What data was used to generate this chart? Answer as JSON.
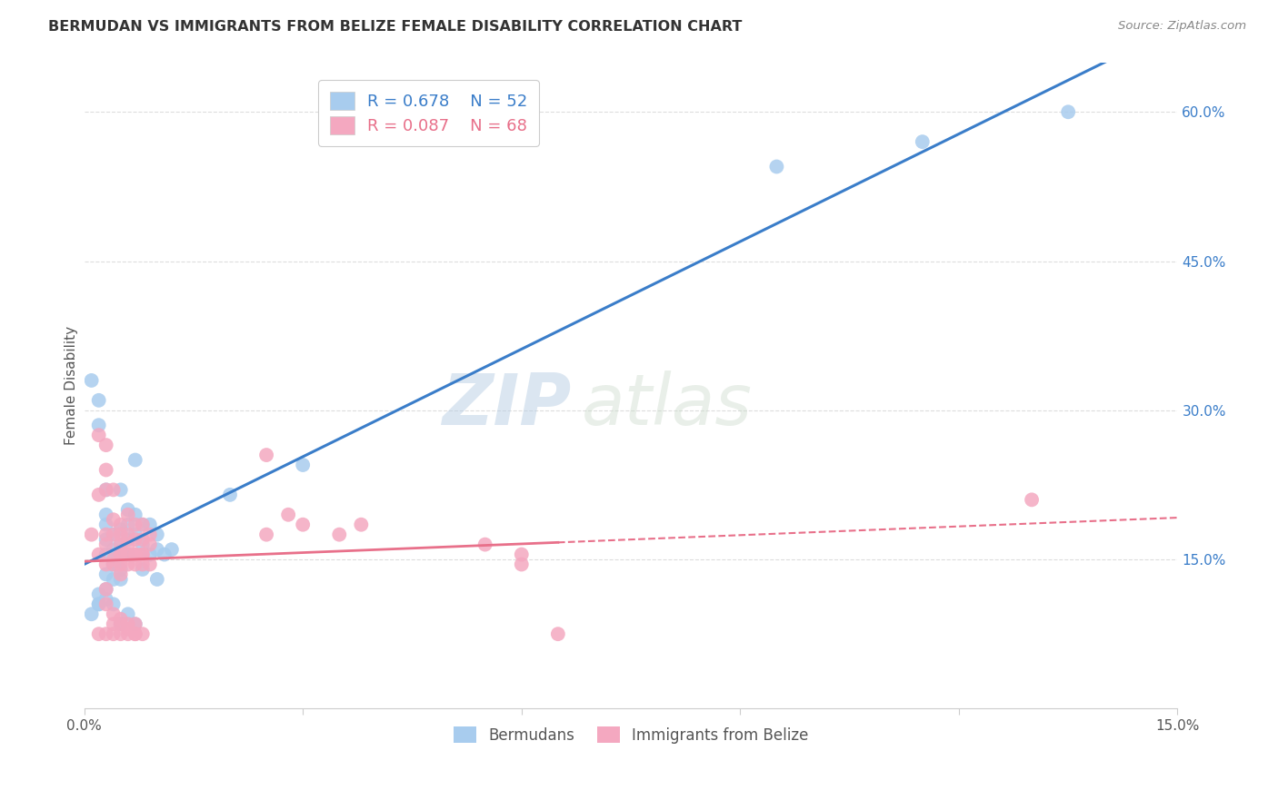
{
  "title": "BERMUDAN VS IMMIGRANTS FROM BELIZE FEMALE DISABILITY CORRELATION CHART",
  "source": "Source: ZipAtlas.com",
  "ylabel": "Female Disability",
  "xlim": [
    0.0,
    0.15
  ],
  "ylim": [
    0.0,
    0.65
  ],
  "blue_R": 0.678,
  "blue_N": 52,
  "pink_R": 0.087,
  "pink_N": 68,
  "blue_color": "#A8CCEE",
  "pink_color": "#F4A8C0",
  "blue_line_color": "#3A7DC9",
  "pink_line_color": "#E8708A",
  "watermark_zip": "ZIP",
  "watermark_atlas": "atlas",
  "background_color": "#FFFFFF",
  "grid_color": "#DDDDDD",
  "blue_x": [
    0.001,
    0.002,
    0.002,
    0.003,
    0.003,
    0.003,
    0.003,
    0.003,
    0.004,
    0.004,
    0.004,
    0.004,
    0.005,
    0.005,
    0.005,
    0.005,
    0.005,
    0.005,
    0.006,
    0.006,
    0.006,
    0.006,
    0.007,
    0.007,
    0.007,
    0.008,
    0.008,
    0.008,
    0.009,
    0.009,
    0.01,
    0.01,
    0.01,
    0.011,
    0.012,
    0.002,
    0.003,
    0.004,
    0.005,
    0.006,
    0.007,
    0.003,
    0.002,
    0.004,
    0.02,
    0.03,
    0.001,
    0.002,
    0.003,
    0.115,
    0.135,
    0.095
  ],
  "blue_y": [
    0.33,
    0.285,
    0.31,
    0.22,
    0.195,
    0.185,
    0.17,
    0.155,
    0.175,
    0.16,
    0.145,
    0.13,
    0.22,
    0.18,
    0.165,
    0.155,
    0.14,
    0.13,
    0.2,
    0.185,
    0.17,
    0.155,
    0.25,
    0.195,
    0.175,
    0.185,
    0.165,
    0.14,
    0.185,
    0.155,
    0.175,
    0.16,
    0.13,
    0.155,
    0.16,
    0.105,
    0.12,
    0.105,
    0.085,
    0.095,
    0.085,
    0.135,
    0.115,
    0.145,
    0.215,
    0.245,
    0.095,
    0.105,
    0.11,
    0.57,
    0.6,
    0.545
  ],
  "pink_x": [
    0.001,
    0.002,
    0.002,
    0.003,
    0.003,
    0.003,
    0.003,
    0.004,
    0.004,
    0.004,
    0.005,
    0.005,
    0.005,
    0.005,
    0.006,
    0.006,
    0.006,
    0.007,
    0.007,
    0.007,
    0.008,
    0.008,
    0.008,
    0.009,
    0.009,
    0.002,
    0.003,
    0.003,
    0.004,
    0.004,
    0.005,
    0.005,
    0.005,
    0.006,
    0.006,
    0.007,
    0.007,
    0.008,
    0.008,
    0.009,
    0.025,
    0.025,
    0.028,
    0.03,
    0.035,
    0.038,
    0.055,
    0.06,
    0.065,
    0.06,
    0.003,
    0.003,
    0.004,
    0.004,
    0.005,
    0.005,
    0.006,
    0.006,
    0.007,
    0.007,
    0.002,
    0.003,
    0.004,
    0.005,
    0.006,
    0.007,
    0.008,
    0.13
  ],
  "pink_y": [
    0.175,
    0.275,
    0.215,
    0.265,
    0.24,
    0.22,
    0.175,
    0.22,
    0.19,
    0.175,
    0.185,
    0.175,
    0.165,
    0.155,
    0.195,
    0.175,
    0.155,
    0.185,
    0.17,
    0.155,
    0.185,
    0.17,
    0.155,
    0.175,
    0.165,
    0.155,
    0.165,
    0.145,
    0.15,
    0.145,
    0.155,
    0.145,
    0.135,
    0.165,
    0.145,
    0.155,
    0.145,
    0.155,
    0.145,
    0.145,
    0.255,
    0.175,
    0.195,
    0.185,
    0.175,
    0.185,
    0.165,
    0.145,
    0.075,
    0.155,
    0.12,
    0.105,
    0.095,
    0.085,
    0.09,
    0.085,
    0.085,
    0.08,
    0.085,
    0.075,
    0.075,
    0.075,
    0.075,
    0.075,
    0.075,
    0.075,
    0.075,
    0.21
  ]
}
